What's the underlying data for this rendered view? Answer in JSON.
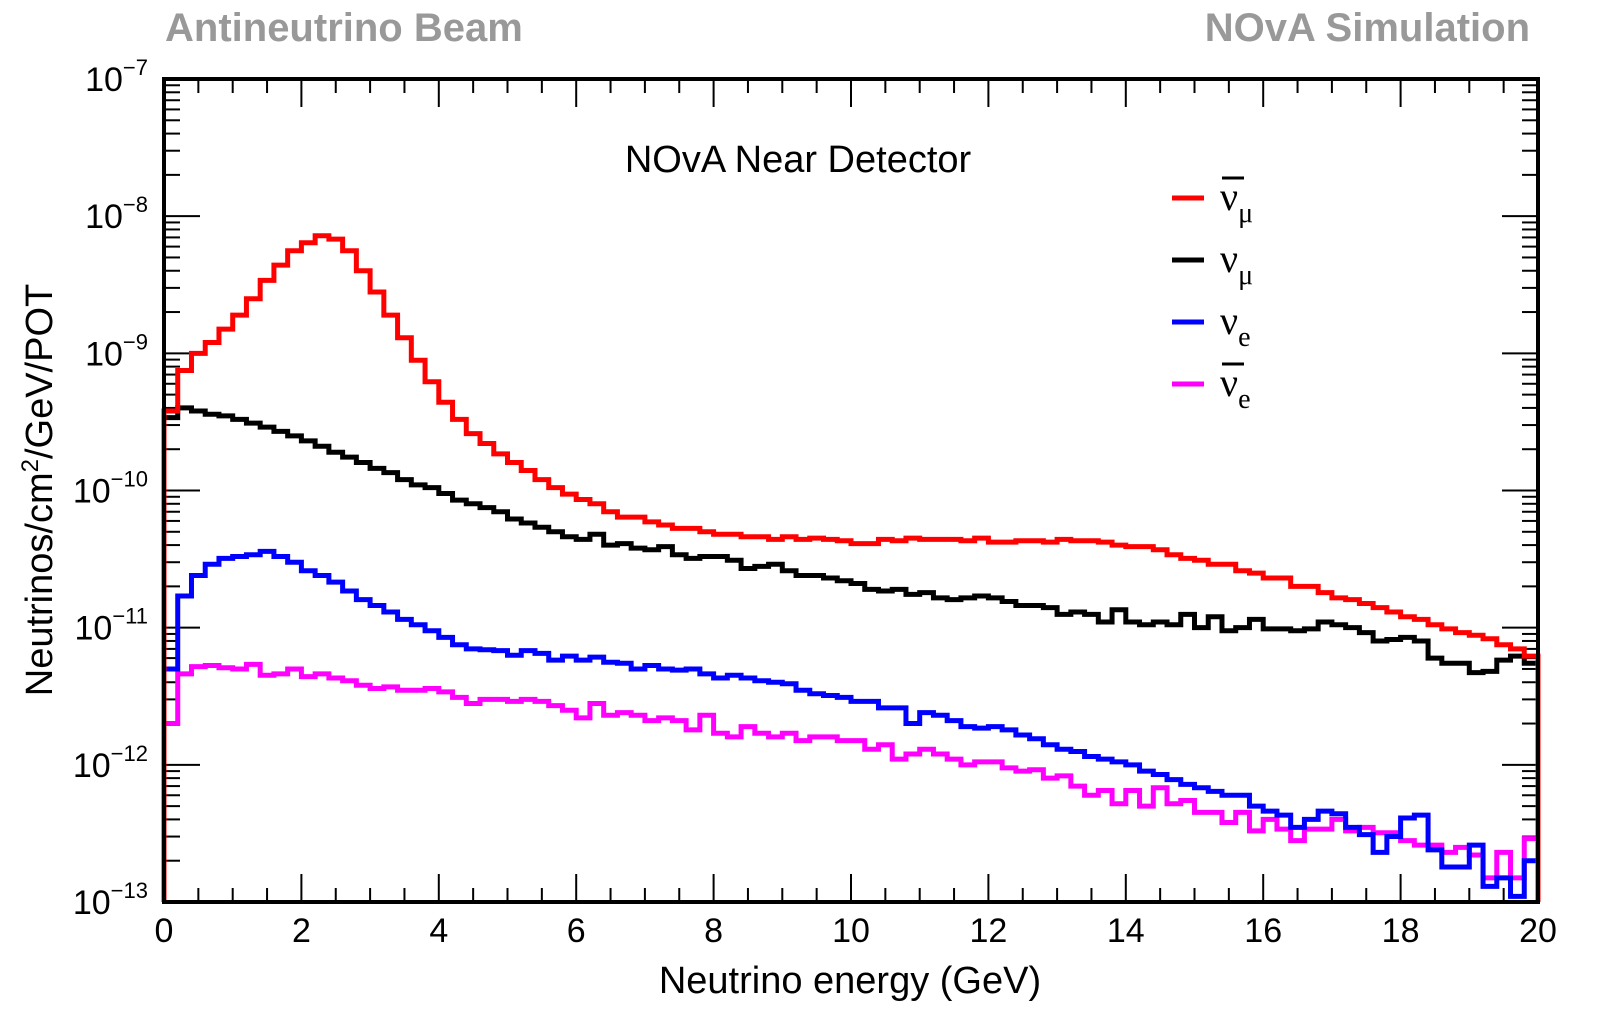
{
  "header": {
    "left_label": "Antineutrino Beam",
    "right_label": "NOvA Simulation"
  },
  "chart_data": {
    "type": "line",
    "style": "step-histogram",
    "title": "NOvA Near Detector",
    "xlabel": "Neutrino energy (GeV)",
    "ylabel_parts": [
      "Neutrinos/cm",
      "2",
      "/GeV/POT"
    ],
    "xlim": [
      0,
      20
    ],
    "ylim": [
      1e-13,
      1e-07
    ],
    "yscale": "log",
    "x_ticks": [
      "0",
      "2",
      "4",
      "6",
      "8",
      "10",
      "12",
      "14",
      "16",
      "18",
      "20"
    ],
    "y_ticks": [
      {
        "base": "10",
        "exp": "−7",
        "value": 1e-07
      },
      {
        "base": "10",
        "exp": "−8",
        "value": 1e-08
      },
      {
        "base": "10",
        "exp": "−9",
        "value": 1e-09
      },
      {
        "base": "10",
        "exp": "−10",
        "value": 1e-10
      },
      {
        "base": "10",
        "exp": "−11",
        "value": 1e-11
      },
      {
        "base": "10",
        "exp": "−12",
        "value": 1e-12
      },
      {
        "base": "10",
        "exp": "−13",
        "value": 1e-13
      }
    ],
    "bin_width": 0.2,
    "legend_position": "top-right",
    "series": [
      {
        "name": "anti-nu-mu",
        "legend": {
          "symbol": "ν",
          "bar": true,
          "sub": "μ"
        },
        "color": "#ff0000",
        "values": [
          3.8e-10,
          7.5e-10,
          1e-09,
          1.2e-09,
          1.5e-09,
          1.9e-09,
          2.5e-09,
          3.4e-09,
          4.4e-09,
          5.6e-09,
          6.4e-09,
          7.2e-09,
          6.8e-09,
          5.6e-09,
          4e-09,
          2.8e-09,
          1.9e-09,
          1.3e-09,
          8.9e-10,
          6.2e-10,
          4.4e-10,
          3.3e-10,
          2.6e-10,
          2.2e-10,
          1.85e-10,
          1.6e-10,
          1.4e-10,
          1.2e-10,
          1.05e-10,
          9.4e-11,
          8.6e-11,
          8e-11,
          7e-11,
          6.4e-11,
          6.4e-11,
          5.9e-11,
          5.6e-11,
          5.3e-11,
          5.3e-11,
          5e-11,
          4.8e-11,
          4.8e-11,
          4.6e-11,
          4.6e-11,
          4.4e-11,
          4.6e-11,
          4.4e-11,
          4.5e-11,
          4.4e-11,
          4.3e-11,
          4.1e-11,
          4.1e-11,
          4.4e-11,
          4.3e-11,
          4.5e-11,
          4.4e-11,
          4.4e-11,
          4.4e-11,
          4.3e-11,
          4.5e-11,
          4.2e-11,
          4.2e-11,
          4.3e-11,
          4.3e-11,
          4.2e-11,
          4.4e-11,
          4.3e-11,
          4.3e-11,
          4.2e-11,
          4e-11,
          3.9e-11,
          3.9e-11,
          3.7e-11,
          3.4e-11,
          3.2e-11,
          3.1e-11,
          2.9e-11,
          2.9e-11,
          2.6e-11,
          2.5e-11,
          2.3e-11,
          2.3e-11,
          2e-11,
          2e-11,
          1.8e-11,
          1.65e-11,
          1.6e-11,
          1.5e-11,
          1.4e-11,
          1.3e-11,
          1.2e-11,
          1.15e-11,
          1.05e-11,
          9.8e-12,
          9.2e-12,
          8.8e-12,
          8.3e-12,
          7.5e-12,
          7e-12,
          6.2e-12
        ]
      },
      {
        "name": "nu-mu",
        "legend": {
          "symbol": "ν",
          "bar": false,
          "sub": "μ"
        },
        "color": "#000000",
        "values": [
          3.4e-10,
          4e-10,
          3.8e-10,
          3.6e-10,
          3.5e-10,
          3.3e-10,
          3.1e-10,
          2.9e-10,
          2.7e-10,
          2.5e-10,
          2.3e-10,
          2.1e-10,
          1.9e-10,
          1.75e-10,
          1.6e-10,
          1.45e-10,
          1.35e-10,
          1.2e-10,
          1.1e-10,
          1.05e-10,
          9.5e-11,
          8.5e-11,
          8e-11,
          7.5e-11,
          7e-11,
          6.2e-11,
          5.8e-11,
          5.4e-11,
          5e-11,
          4.6e-11,
          4.4e-11,
          4.8e-11,
          4e-11,
          4.1e-11,
          3.8e-11,
          3.7e-11,
          3.9e-11,
          3.4e-11,
          3.2e-11,
          3.3e-11,
          3.3e-11,
          3.1e-11,
          2.7e-11,
          2.8e-11,
          2.9e-11,
          2.6e-11,
          2.4e-11,
          2.4e-11,
          2.3e-11,
          2.2e-11,
          2.1e-11,
          1.9e-11,
          1.85e-11,
          1.9e-11,
          1.75e-11,
          1.8e-11,
          1.65e-11,
          1.6e-11,
          1.65e-11,
          1.7e-11,
          1.65e-11,
          1.55e-11,
          1.45e-11,
          1.45e-11,
          1.4e-11,
          1.25e-11,
          1.3e-11,
          1.25e-11,
          1.1e-11,
          1.35e-11,
          1.1e-11,
          1.05e-11,
          1.1e-11,
          1.05e-11,
          1.25e-11,
          1e-11,
          1.2e-11,
          9.5e-12,
          1e-11,
          1.15e-11,
          9.8e-12,
          9.8e-12,
          9.5e-12,
          9.8e-12,
          1.1e-11,
          1.05e-11,
          1e-11,
          9.2e-12,
          8e-12,
          8.2e-12,
          8.5e-12,
          8e-12,
          6e-12,
          5.5e-12,
          5.5e-12,
          4.7e-12,
          4.8e-12,
          5.8e-12,
          6.2e-12,
          5.5e-12
        ]
      },
      {
        "name": "nu-e",
        "legend": {
          "symbol": "ν",
          "bar": false,
          "sub": "e"
        },
        "color": "#0000ff",
        "values": [
          5e-12,
          1.7e-11,
          2.4e-11,
          2.9e-11,
          3.2e-11,
          3.3e-11,
          3.4e-11,
          3.6e-11,
          3.3e-11,
          3e-11,
          2.6e-11,
          2.4e-11,
          2.15e-11,
          1.85e-11,
          1.6e-11,
          1.45e-11,
          1.3e-11,
          1.15e-11,
          1.05e-11,
          9.5e-12,
          8.5e-12,
          7.5e-12,
          7e-12,
          6.9e-12,
          6.8e-12,
          6.3e-12,
          6.8e-12,
          6.5e-12,
          5.8e-12,
          6.2e-12,
          5.8e-12,
          6.1e-12,
          5.6e-12,
          5.5e-12,
          5e-12,
          5.3e-12,
          5e-12,
          4.9e-12,
          5e-12,
          4.6e-12,
          4.3e-12,
          4.5e-12,
          4.3e-12,
          4.1e-12,
          4e-12,
          3.9e-12,
          3.5e-12,
          3.3e-12,
          3.2e-12,
          3.1e-12,
          2.9e-12,
          2.9e-12,
          2.6e-12,
          2.6e-12,
          2e-12,
          2.4e-12,
          2.3e-12,
          2.1e-12,
          1.9e-12,
          1.85e-12,
          1.9e-12,
          1.8e-12,
          1.65e-12,
          1.55e-12,
          1.4e-12,
          1.3e-12,
          1.25e-12,
          1.15e-12,
          1.1e-12,
          1.05e-12,
          1e-12,
          9e-13,
          8.5e-13,
          7.8e-13,
          7.2e-13,
          6.8e-13,
          6.4e-13,
          6e-13,
          6e-13,
          5e-13,
          4.6e-13,
          4.3e-13,
          3.5e-13,
          4e-13,
          4.6e-13,
          4.4e-13,
          3.5e-13,
          3.1e-13,
          2.3e-13,
          3e-13,
          4.1e-13,
          4.3e-13,
          2.4e-13,
          1.8e-13,
          1.8e-13,
          2.6e-13,
          1.3e-13,
          1.5e-13,
          1.1e-13,
          2e-13
        ]
      },
      {
        "name": "anti-nu-e",
        "legend": {
          "symbol": "ν",
          "bar": true,
          "sub": "e"
        },
        "color": "#ff00ff",
        "values": [
          2e-12,
          4.6e-12,
          5.2e-12,
          5.3e-12,
          5.1e-12,
          5e-12,
          5.4e-12,
          4.5e-12,
          4.6e-12,
          5e-12,
          4.4e-12,
          4.6e-12,
          4.3e-12,
          4.1e-12,
          3.8e-12,
          3.6e-12,
          3.7e-12,
          3.5e-12,
          3.5e-12,
          3.6e-12,
          3.4e-12,
          3.1e-12,
          2.8e-12,
          3e-12,
          3e-12,
          2.9e-12,
          3e-12,
          2.9e-12,
          2.7e-12,
          2.5e-12,
          2.2e-12,
          2.8e-12,
          2.3e-12,
          2.4e-12,
          2.3e-12,
          2.1e-12,
          2.2e-12,
          2.1e-12,
          1.8e-12,
          2.3e-12,
          1.7e-12,
          1.6e-12,
          1.9e-12,
          1.7e-12,
          1.6e-12,
          1.7e-12,
          1.5e-12,
          1.6e-12,
          1.6e-12,
          1.5e-12,
          1.5e-12,
          1.3e-12,
          1.4e-12,
          1.1e-12,
          1.2e-12,
          1.3e-12,
          1.2e-12,
          1.1e-12,
          1e-12,
          1.05e-12,
          1.05e-12,
          9.5e-13,
          9e-13,
          9.2e-13,
          8e-13,
          8.3e-13,
          7e-13,
          6e-13,
          6.5e-13,
          5.2e-13,
          6.5e-13,
          5e-13,
          6.8e-13,
          5.2e-13,
          5.5e-13,
          4.5e-13,
          4.5e-13,
          3.8e-13,
          4.5e-13,
          3.3e-13,
          4e-13,
          3.4e-13,
          2.8e-13,
          3.4e-13,
          3.4e-13,
          4e-13,
          3.3e-13,
          3.5e-13,
          3.2e-13,
          3.2e-13,
          2.8e-13,
          2.6e-13,
          2.6e-13,
          2.3e-13,
          2.5e-13,
          2.2e-13,
          1.5e-13,
          2.3e-13,
          1.5e-13,
          2.9e-13
        ]
      }
    ]
  }
}
